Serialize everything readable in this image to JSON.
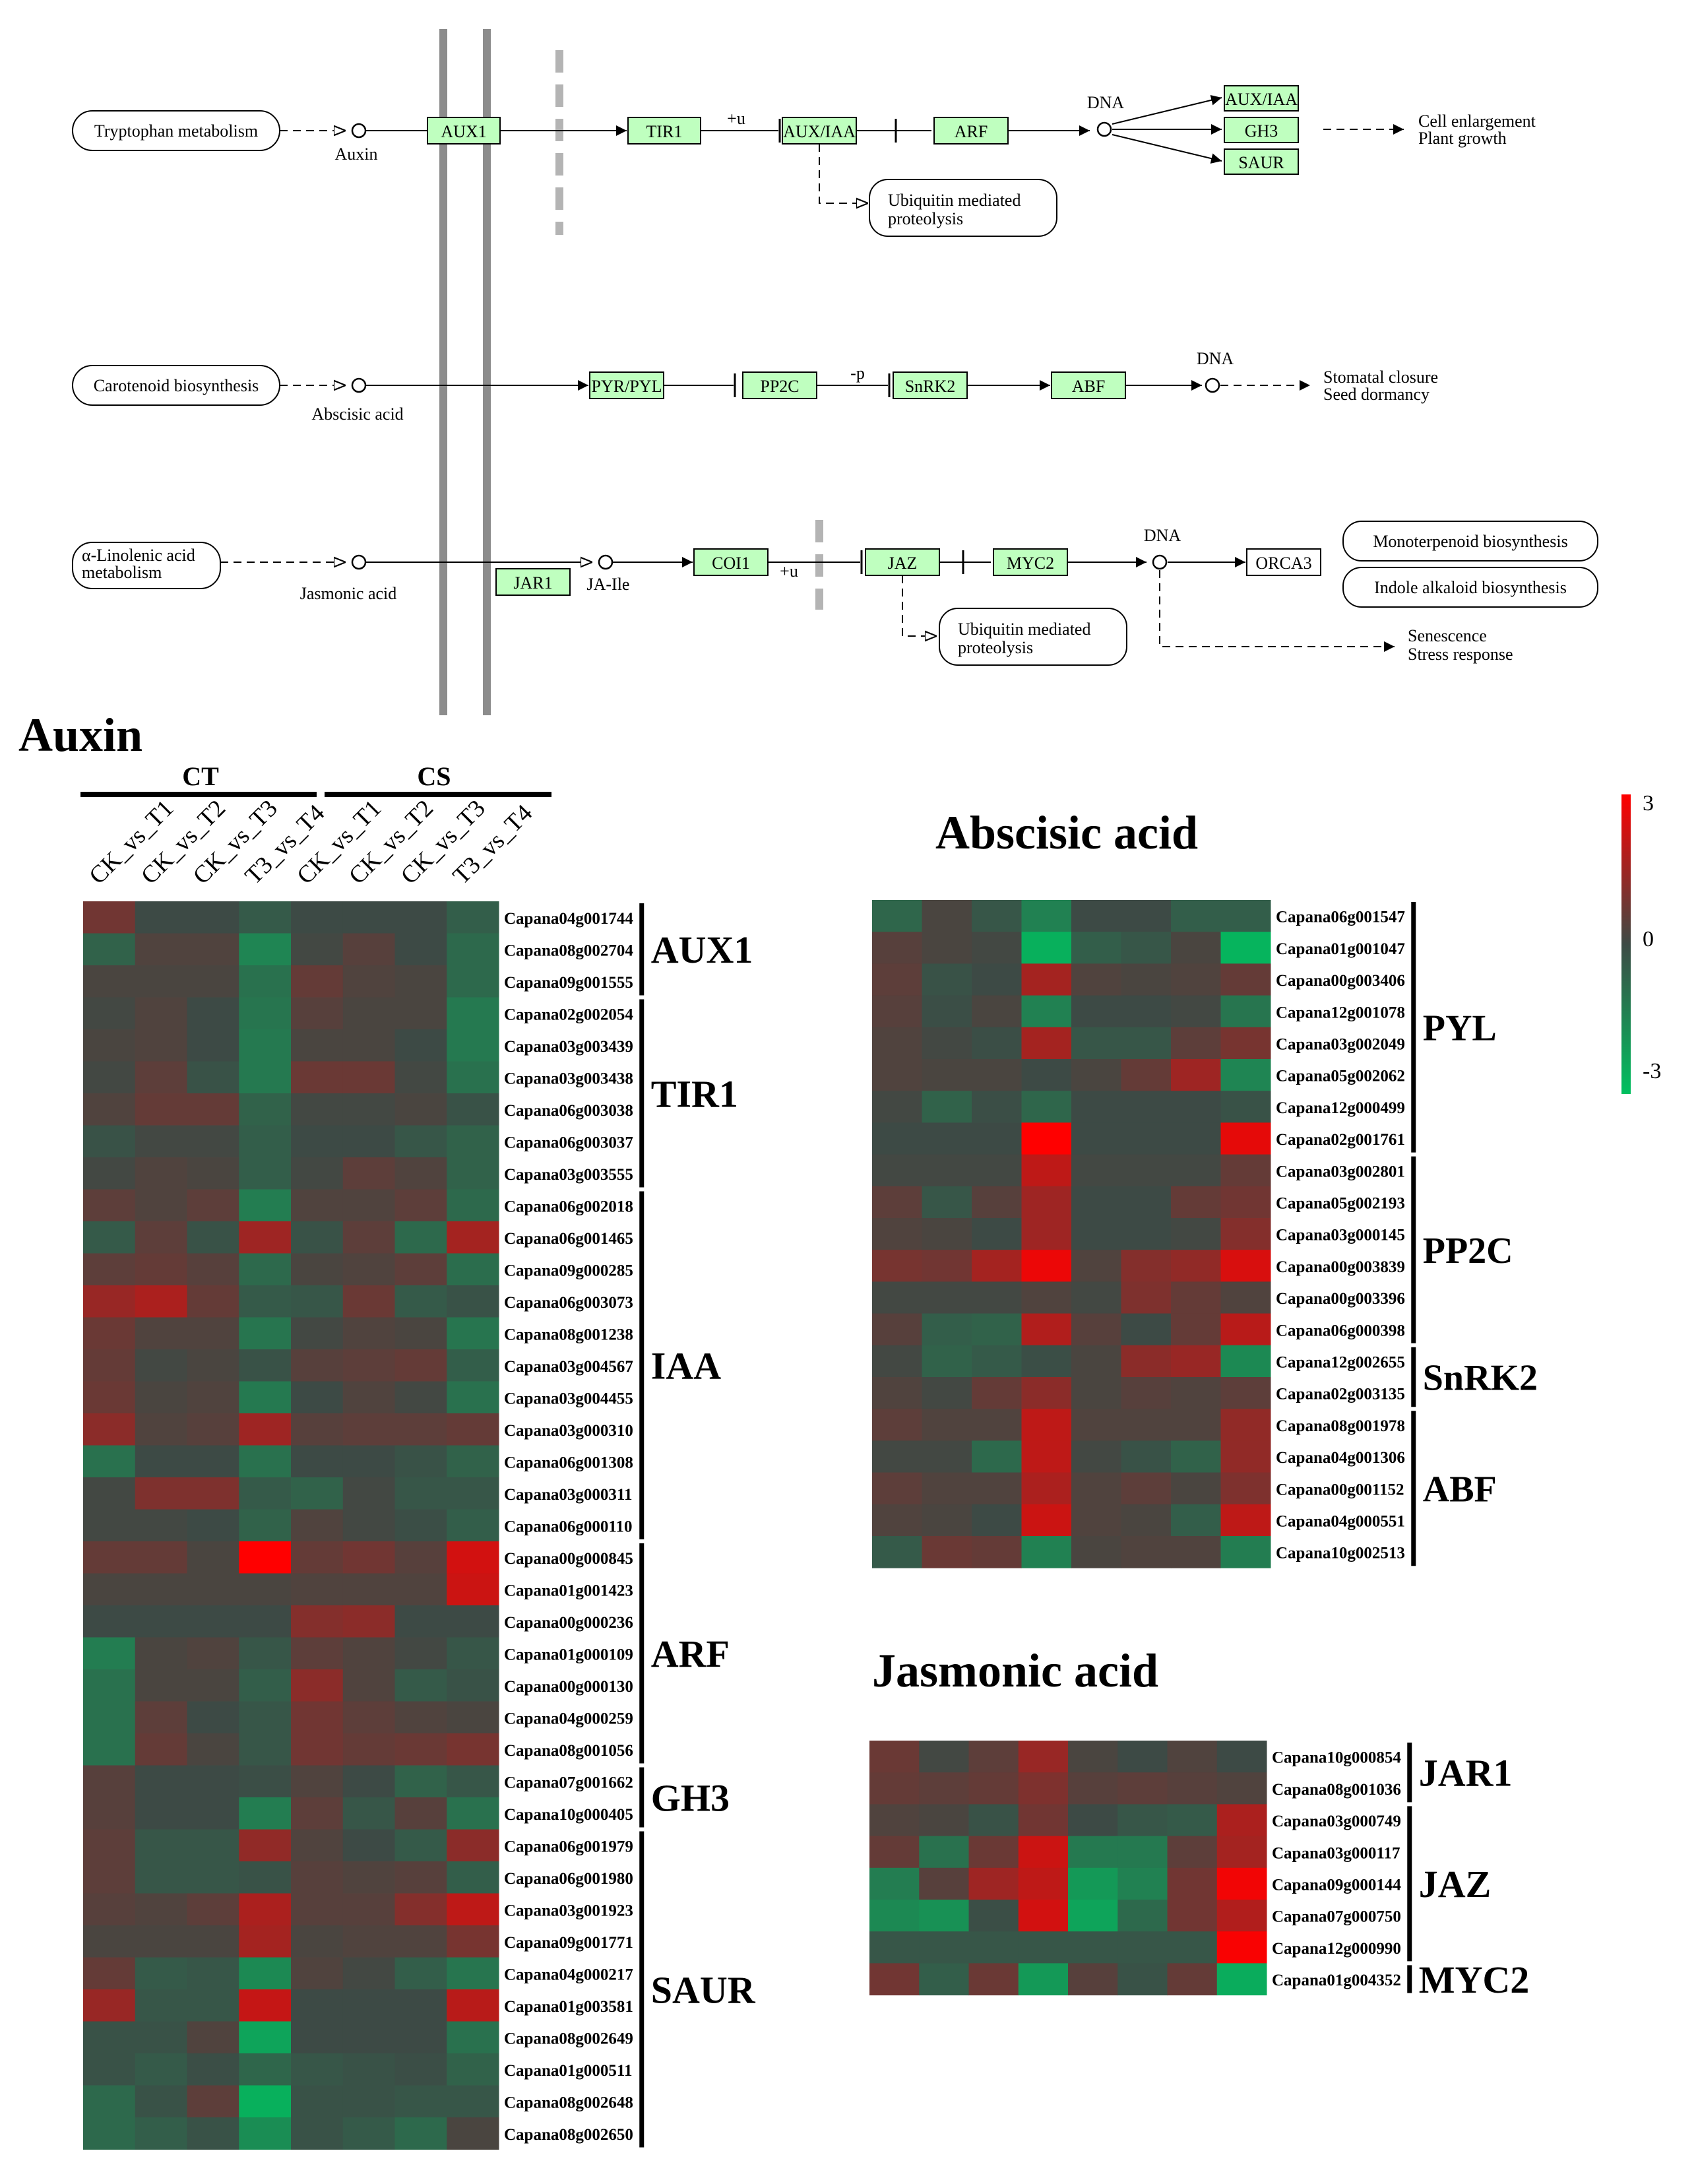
{
  "pathway": {
    "auxin_row": {
      "source": "Tryptophan metabolism",
      "compound": "Auxin",
      "genes": [
        "AUX1",
        "TIR1",
        "AUX/IAA",
        "ARF"
      ],
      "ub_label": "+u",
      "dna": "DNA",
      "targets": [
        "AUX/IAA",
        "GH3",
        "SAUR"
      ],
      "outcome": [
        "Cell enlargement",
        "Plant growth"
      ],
      "side": [
        "Ubiquitin mediated",
        "proteolysis"
      ]
    },
    "aba_row": {
      "source": "Carotenoid biosynthesis",
      "compound": "Abscisic acid",
      "genes": [
        "PYR/PYL",
        "PP2C",
        "SnRK2",
        "ABF"
      ],
      "p_label": "-p",
      "dna": "DNA",
      "outcome": [
        "Stomatal closure",
        "Seed dormancy"
      ]
    },
    "ja_row": {
      "source": [
        "α-Linolenic acid",
        "metabolism"
      ],
      "compound": "Jasmonic acid",
      "jar1": "JAR1",
      "ja_ile": "JA-Ile",
      "genes": [
        "COI1",
        "JAZ",
        "MYC2"
      ],
      "ub_label": "+u",
      "dna": "DNA",
      "orca3": "ORCA3",
      "products": [
        "Monoterpenoid biosynthesis",
        "Indole alkaloid biosynthesis"
      ],
      "side": [
        "Ubiquitin mediated",
        "proteolysis"
      ],
      "outcome": [
        "Senescence",
        "Stress response"
      ]
    }
  },
  "heatmaps": {
    "columns": [
      "CK_vs_T1",
      "CK_vs_T2",
      "CK_vs_T3",
      "T3_vs_T4",
      "CK_vs_T1",
      "CK_vs_T2",
      "CK_vs_T3",
      "T3_vs_T4"
    ],
    "col_groups": [
      "CT",
      "CS"
    ],
    "colorbar": {
      "max_label": "3",
      "mid_label": "0",
      "min_label": "-3",
      "low": "#00c060",
      "mid": "#3d4a45",
      "high": "#ff0000"
    },
    "auxin": {
      "title": "Auxin",
      "rows": [
        {
          "gene": "Capana04g001744",
          "values": [
            0.8,
            0,
            0,
            -0.4,
            0,
            0,
            0,
            -0.5
          ]
        },
        {
          "gene": "Capana08g002704",
          "values": [
            -0.6,
            0.3,
            0.3,
            -1.5,
            0.1,
            0.4,
            0,
            -0.8
          ]
        },
        {
          "gene": "Capana09g001555",
          "values": [
            0.2,
            0.2,
            0.2,
            -1.0,
            0.6,
            0.3,
            0.2,
            -0.8
          ]
        },
        {
          "gene": "Capana02g002054",
          "values": [
            0.1,
            0.3,
            0,
            -1.1,
            0.4,
            0.2,
            0.2,
            -1.2
          ]
        },
        {
          "gene": "Capana03g003439",
          "values": [
            0.2,
            0.3,
            0,
            -1.2,
            0.2,
            0.2,
            0,
            -1.2
          ]
        },
        {
          "gene": "Capana03g003438",
          "values": [
            0.1,
            0.5,
            -0.2,
            -1.2,
            0.7,
            0.7,
            0.1,
            -1.0
          ]
        },
        {
          "gene": "Capana06g003038",
          "values": [
            0.3,
            0.6,
            0.6,
            -0.6,
            0.1,
            0.1,
            0.2,
            -0.2
          ]
        },
        {
          "gene": "Capana06g003037",
          "values": [
            -0.2,
            0.1,
            0.1,
            -0.5,
            0,
            0,
            -0.3,
            -0.6
          ]
        },
        {
          "gene": "Capana03g003555",
          "values": [
            0.1,
            0.3,
            0.2,
            -0.5,
            0.1,
            0.5,
            0.3,
            -0.6
          ]
        },
        {
          "gene": "Capana06g002018",
          "values": [
            0.5,
            0.3,
            0.5,
            -1.3,
            0.3,
            0.3,
            0.5,
            -0.8
          ]
        },
        {
          "gene": "Capana06g001465",
          "values": [
            -0.4,
            0.5,
            -0.2,
            1.5,
            -0.2,
            0.5,
            -0.8,
            1.6
          ]
        },
        {
          "gene": "Capana09g000285",
          "values": [
            0.5,
            0.6,
            0.4,
            -0.8,
            0.2,
            0.3,
            0.5,
            -0.9
          ]
        },
        {
          "gene": "Capana06g003073",
          "values": [
            1.4,
            1.7,
            0.6,
            -0.4,
            -0.3,
            0.7,
            -0.4,
            -0.2
          ]
        },
        {
          "gene": "Capana08g001238",
          "values": [
            0.7,
            0.3,
            0.3,
            -1.1,
            0.1,
            0.3,
            0.2,
            -1.1
          ]
        },
        {
          "gene": "Capana03g004567",
          "values": [
            0.6,
            0.1,
            0.2,
            -0.2,
            0.4,
            0.5,
            0.6,
            -0.5
          ]
        },
        {
          "gene": "Capana03g004455",
          "values": [
            0.7,
            0.2,
            0.3,
            -1.2,
            0,
            0.3,
            0.1,
            -1.0
          ]
        },
        {
          "gene": "Capana03g000310",
          "values": [
            1.2,
            0.3,
            0.4,
            1.5,
            0.4,
            0.5,
            0.5,
            0.6
          ]
        },
        {
          "gene": "Capana06g001308",
          "values": [
            -1.0,
            0,
            0,
            -1.0,
            0,
            0,
            -0.2,
            -0.6
          ]
        },
        {
          "gene": "Capana03g000311",
          "values": [
            0.1,
            1.0,
            1.0,
            -0.4,
            -0.6,
            0.1,
            -0.3,
            -0.3
          ]
        },
        {
          "gene": "Capana06g000110",
          "values": [
            0.1,
            0.1,
            0,
            -0.6,
            0.3,
            0.1,
            -0.1,
            -0.5
          ]
        },
        {
          "gene": "Capana00g000845",
          "values": [
            0.6,
            0.6,
            0.2,
            3.0,
            0.6,
            0.8,
            0.4,
            2.3
          ]
        },
        {
          "gene": "Capana01g001423",
          "values": [
            0.2,
            0.2,
            0.2,
            0.2,
            0.3,
            0.3,
            0.3,
            2.2
          ]
        },
        {
          "gene": "Capana00g000236",
          "values": [
            0,
            0,
            0,
            0,
            1.1,
            1.2,
            0,
            0
          ]
        },
        {
          "gene": "Capana01g000109",
          "values": [
            -1.3,
            0.2,
            0.3,
            -0.3,
            0.5,
            0.3,
            0.1,
            -0.3
          ]
        },
        {
          "gene": "Capana00g000130",
          "values": [
            -1.0,
            0.2,
            0.2,
            -0.5,
            1.2,
            0.3,
            -0.4,
            -0.2
          ]
        },
        {
          "gene": "Capana04g000259",
          "values": [
            -1.0,
            0.5,
            0,
            -0.3,
            0.8,
            0.5,
            0.3,
            0.2
          ]
        },
        {
          "gene": "Capana08g001056",
          "values": [
            -1.0,
            0.6,
            0.2,
            -0.3,
            0.8,
            0.6,
            0.7,
            0.9
          ]
        },
        {
          "gene": "Capana07g001662",
          "values": [
            0.4,
            0,
            0,
            -0.1,
            0.3,
            0,
            -0.6,
            -0.3
          ]
        },
        {
          "gene": "Capana10g000405",
          "values": [
            0.4,
            0,
            0,
            -1.3,
            0.5,
            -0.3,
            0.4,
            -1.0
          ]
        },
        {
          "gene": "Capana06g001979",
          "values": [
            0.5,
            -0.3,
            -0.3,
            1.3,
            0.3,
            0,
            -0.4,
            1.2
          ]
        },
        {
          "gene": "Capana06g001980",
          "values": [
            0.5,
            -0.3,
            -0.3,
            -0.2,
            0.4,
            0.3,
            0.4,
            -0.5
          ]
        },
        {
          "gene": "Capana03g001923",
          "values": [
            0.4,
            0.3,
            0.5,
            1.7,
            0.4,
            0.4,
            1.1,
            2.0
          ]
        },
        {
          "gene": "Capana09g001771",
          "values": [
            0.2,
            0.2,
            0.2,
            1.6,
            0.2,
            0.3,
            0.3,
            0.9
          ]
        },
        {
          "gene": "Capana04g000217",
          "values": [
            0.6,
            -0.4,
            -0.3,
            -1.6,
            0.3,
            0.1,
            -0.5,
            -1.1
          ]
        },
        {
          "gene": "Capana01g003581",
          "values": [
            1.4,
            -0.3,
            -0.3,
            2.1,
            0,
            0,
            0,
            1.9
          ]
        },
        {
          "gene": "Capana08g002649",
          "values": [
            -0.2,
            -0.2,
            0.3,
            -2.3,
            0,
            0,
            0,
            -1.0
          ]
        },
        {
          "gene": "Capana01g000511",
          "values": [
            -0.2,
            -0.4,
            -0.1,
            -0.7,
            -0.3,
            -0.2,
            -0.1,
            -0.6
          ]
        },
        {
          "gene": "Capana08g002648",
          "values": [
            -0.8,
            -0.2,
            0.5,
            -2.6,
            -0.2,
            -0.2,
            -0.3,
            -0.3
          ]
        },
        {
          "gene": "Capana08g002650",
          "values": [
            -0.8,
            -0.5,
            -0.2,
            -1.7,
            -0.2,
            -0.4,
            -0.8,
            0.2
          ]
        }
      ],
      "groups": [
        {
          "label": "AUX1",
          "start": 0,
          "count": 3
        },
        {
          "label": "TIR1",
          "start": 3,
          "count": 6
        },
        {
          "label": "IAA",
          "start": 9,
          "count": 11
        },
        {
          "label": "ARF",
          "start": 20,
          "count": 7
        },
        {
          "label": "GH3",
          "start": 27,
          "count": 2
        },
        {
          "label": "SAUR",
          "start": 29,
          "count": 10
        }
      ]
    },
    "aba": {
      "title": "Abscisic acid",
      "rows": [
        {
          "gene": "Capana06g001547",
          "values": [
            -0.7,
            0.2,
            -0.3,
            -1.4,
            0,
            0,
            -0.5,
            -0.5
          ]
        },
        {
          "gene": "Capana01g001047",
          "values": [
            0.4,
            0.2,
            0.1,
            -2.6,
            -0.5,
            -0.3,
            0.2,
            -2.7
          ]
        },
        {
          "gene": "Capana00g003406",
          "values": [
            0.5,
            -0.2,
            0,
            1.6,
            0.3,
            0.2,
            0.3,
            0.6
          ]
        },
        {
          "gene": "Capana12g001078",
          "values": [
            0.4,
            -0.1,
            0.2,
            -1.4,
            0,
            0,
            0.1,
            -1.1
          ]
        },
        {
          "gene": "Capana03g002049",
          "values": [
            0.3,
            0.1,
            -0.1,
            1.6,
            -0.3,
            -0.3,
            0.5,
            0.9
          ]
        },
        {
          "gene": "Capana05g002062",
          "values": [
            0.3,
            0.2,
            0.2,
            0,
            0.2,
            0.6,
            1.5,
            -1.5
          ]
        },
        {
          "gene": "Capana12g000499",
          "values": [
            0.1,
            -0.6,
            -0.1,
            -0.7,
            0,
            0,
            0,
            -0.2
          ]
        },
        {
          "gene": "Capana02g001761",
          "values": [
            0,
            0,
            0,
            3.0,
            0,
            0,
            0,
            2.6
          ]
        },
        {
          "gene": "Capana03g002801",
          "values": [
            0.1,
            0.1,
            0.1,
            2.0,
            0.1,
            0.1,
            0.1,
            0.6
          ]
        },
        {
          "gene": "Capana05g002193",
          "values": [
            0.5,
            -0.3,
            0.4,
            1.5,
            0,
            0,
            0.6,
            0.8
          ]
        },
        {
          "gene": "Capana03g000145",
          "values": [
            0.3,
            0.2,
            0,
            1.5,
            0,
            0,
            0.1,
            1.1
          ]
        },
        {
          "gene": "Capana00g003839",
          "values": [
            0.9,
            0.8,
            1.6,
            2.7,
            0.3,
            1.1,
            1.3,
            2.4
          ]
        },
        {
          "gene": "Capana00g003396",
          "values": [
            0.1,
            0.1,
            0.1,
            0.3,
            0.1,
            1.0,
            0.6,
            0.3
          ]
        },
        {
          "gene": "Capana06g000398",
          "values": [
            0.4,
            -0.5,
            -0.6,
            1.8,
            0.4,
            0,
            0.6,
            1.9
          ]
        },
        {
          "gene": "Capana12g002655",
          "values": [
            0.1,
            -0.6,
            -0.4,
            -0.1,
            0.2,
            1.2,
            1.4,
            -1.6
          ]
        },
        {
          "gene": "Capana02g003135",
          "values": [
            0.3,
            0.1,
            0.6,
            1.2,
            0.2,
            0.4,
            0.3,
            0.5
          ]
        },
        {
          "gene": "Capana08g001978",
          "values": [
            0.5,
            0.3,
            0.3,
            2.0,
            0.3,
            0.3,
            0.3,
            1.3
          ]
        },
        {
          "gene": "Capana04g001306",
          "values": [
            0.1,
            0.1,
            -0.8,
            2.0,
            0.1,
            -0.2,
            -0.6,
            1.3
          ]
        },
        {
          "gene": "Capana00g001152",
          "values": [
            0.5,
            0.3,
            0.3,
            1.7,
            0.3,
            0.5,
            0.2,
            1.0
          ]
        },
        {
          "gene": "Capana04g000551",
          "values": [
            0.3,
            0.2,
            0,
            2.2,
            0.3,
            0.2,
            -0.5,
            2.0
          ]
        },
        {
          "gene": "Capana10g002513",
          "values": [
            -0.4,
            0.7,
            0.6,
            -1.4,
            0.2,
            0.3,
            0.3,
            -1.3
          ]
        }
      ],
      "groups": [
        {
          "label": "PYL",
          "start": 0,
          "count": 8
        },
        {
          "label": "PP2C",
          "start": 8,
          "count": 6
        },
        {
          "label": "SnRK2",
          "start": 14,
          "count": 2
        },
        {
          "label": "ABF",
          "start": 16,
          "count": 5
        }
      ]
    },
    "ja": {
      "title": "Jasmonic acid",
      "rows": [
        {
          "gene": "Capana10g000854",
          "values": [
            0.7,
            0.1,
            0.5,
            1.4,
            0.2,
            0,
            0.3,
            0
          ]
        },
        {
          "gene": "Capana08g001036",
          "values": [
            0.6,
            0.5,
            0.6,
            1.0,
            0.4,
            0.5,
            0.4,
            0.3
          ]
        },
        {
          "gene": "Capana03g000749",
          "values": [
            0.3,
            0.2,
            -0.2,
            0.8,
            0,
            -0.3,
            -0.4,
            1.7
          ]
        },
        {
          "gene": "Capana03g000117",
          "values": [
            0.6,
            -1.0,
            0.7,
            2.2,
            -1.2,
            -1.2,
            0.5,
            1.6
          ]
        },
        {
          "gene": "Capana09g000144",
          "values": [
            -1.3,
            0.4,
            1.5,
            2.0,
            -2.0,
            -1.4,
            0.8,
            2.8
          ]
        },
        {
          "gene": "Capana07g000750",
          "values": [
            -1.6,
            -1.8,
            -0.1,
            2.3,
            -2.3,
            -0.8,
            0.8,
            1.8
          ]
        },
        {
          "gene": "Capana12g000990",
          "values": [
            -0.3,
            -0.3,
            -0.3,
            -0.3,
            -0.3,
            -0.3,
            -0.3,
            2.9
          ]
        },
        {
          "gene": "Capana01g004352",
          "values": [
            0.8,
            -0.5,
            0.7,
            -2.0,
            0.4,
            -0.2,
            0.6,
            -2.5
          ]
        }
      ],
      "groups": [
        {
          "label": "JAR1",
          "start": 0,
          "count": 2
        },
        {
          "label": "JAZ",
          "start": 2,
          "count": 5
        },
        {
          "label": "MYC2",
          "start": 7,
          "count": 1
        }
      ]
    }
  }
}
